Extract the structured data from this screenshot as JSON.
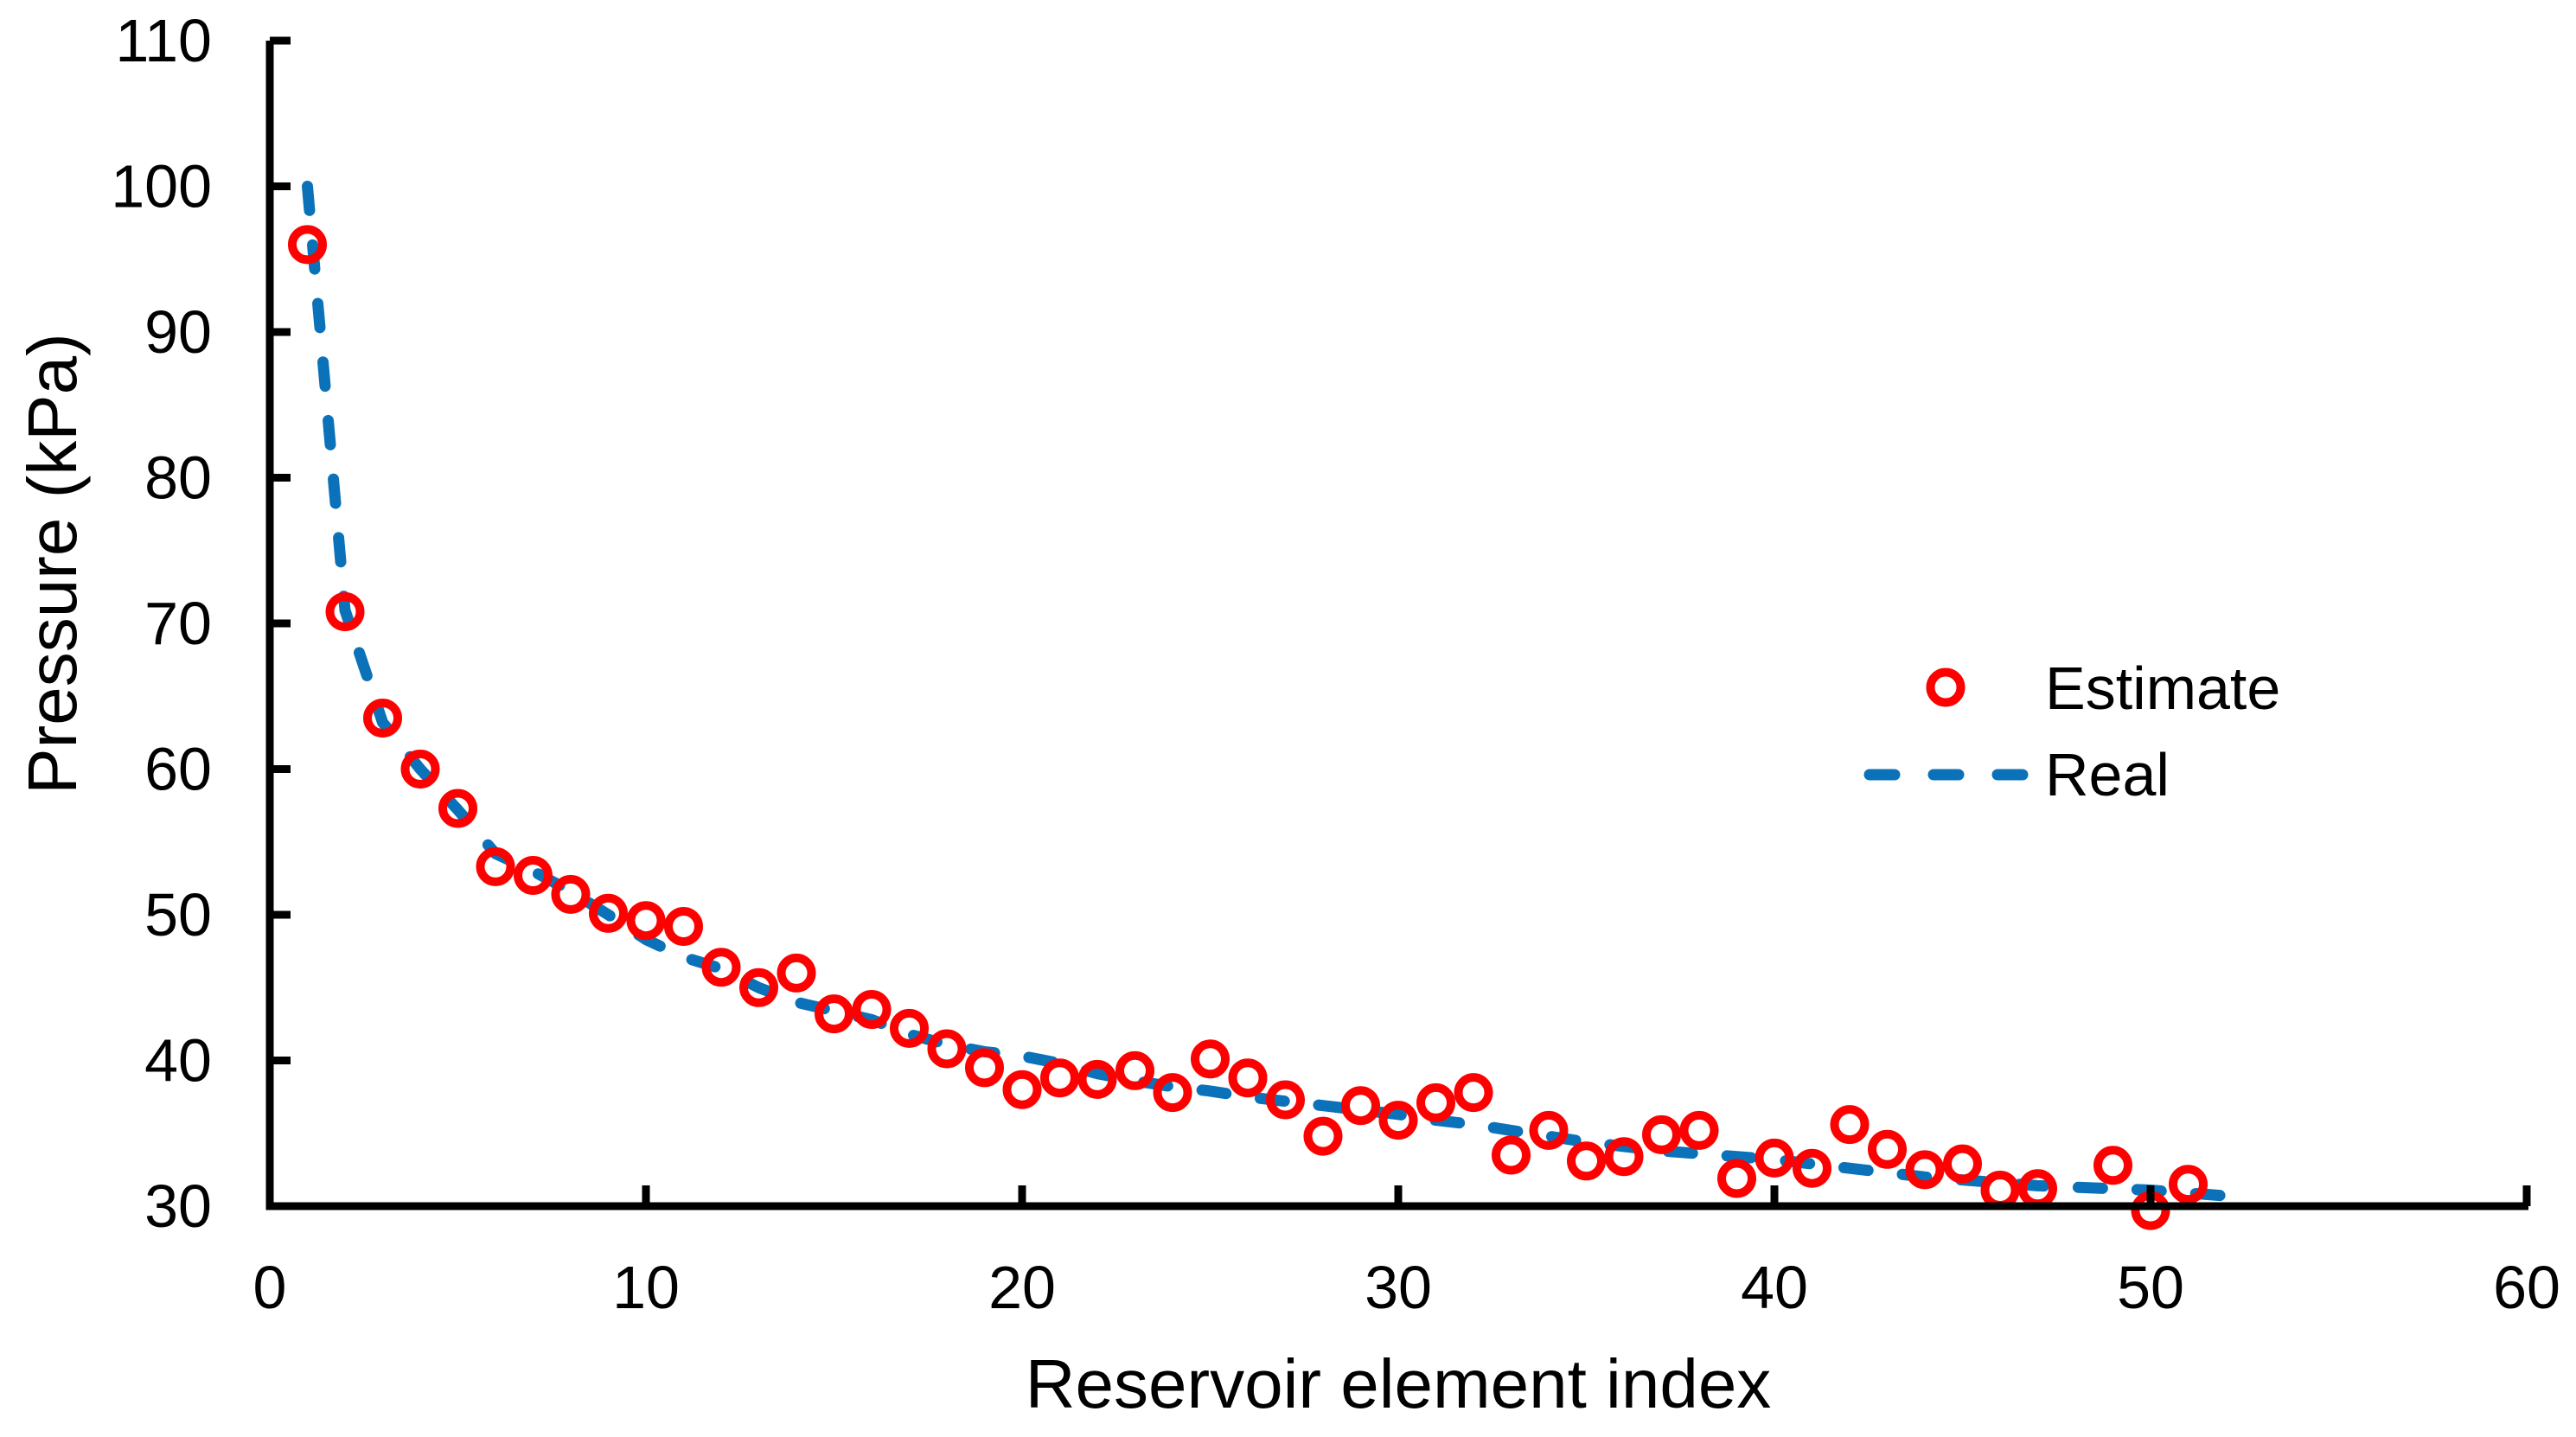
{
  "chart_data": {
    "type": "scatter",
    "title": "",
    "xlabel": "Reservoir element index",
    "ylabel": "Pressure (kPa)",
    "xlim": [
      0,
      60
    ],
    "ylim": [
      30,
      110
    ],
    "xticks": [
      0,
      10,
      20,
      30,
      40,
      50,
      60
    ],
    "yticks": [
      30,
      40,
      50,
      60,
      70,
      80,
      90,
      100,
      110
    ],
    "grid": false,
    "legend_position": "middle-right",
    "colors": {
      "estimate_marker": "#FF0000",
      "real_line": "#0B72B9",
      "axis": "#000000"
    },
    "series": [
      {
        "name": "Estimate",
        "style": "open-circle-markers",
        "color": "#FF0000",
        "x": [
          1,
          2,
          3,
          4,
          5,
          6,
          7,
          8,
          9,
          10,
          11,
          12,
          13,
          14,
          15,
          16,
          17,
          18,
          19,
          20,
          21,
          22,
          23,
          24,
          25,
          26,
          27,
          28,
          29,
          30,
          31,
          32,
          33,
          34,
          35,
          36,
          37,
          38,
          39,
          40,
          41,
          42,
          43,
          44,
          45,
          46,
          47,
          49,
          50,
          51
        ],
        "y": [
          96.0,
          70.8,
          63.5,
          60.0,
          57.3,
          53.3,
          52.7,
          51.4,
          50.1,
          49.6,
          49.2,
          46.4,
          45.0,
          46.0,
          43.2,
          43.5,
          42.2,
          40.8,
          39.5,
          38.0,
          38.8,
          38.7,
          39.3,
          37.8,
          40.1,
          38.8,
          37.3,
          34.8,
          36.9,
          35.9,
          37.1,
          37.8,
          33.5,
          35.2,
          33.1,
          33.4,
          34.9,
          35.2,
          31.9,
          33.3,
          32.6,
          35.6,
          33.9,
          32.5,
          32.9,
          31.1,
          31.2,
          32.8,
          29.7,
          31.5
        ]
      },
      {
        "name": "Real",
        "style": "dashed-line",
        "color": "#0B72B9",
        "x": [
          1,
          2,
          3,
          4,
          5,
          6,
          7,
          8,
          9,
          10,
          11,
          12,
          13,
          14,
          15,
          16,
          17,
          18,
          19,
          20,
          21,
          22,
          23,
          24,
          25,
          26,
          27,
          28,
          29,
          30,
          31,
          32,
          33,
          34,
          35,
          36,
          37,
          38,
          39,
          40,
          41,
          42,
          43,
          44,
          45,
          46,
          47,
          48,
          49,
          50,
          51,
          52,
          52.6
        ],
        "y": [
          100,
          70.9,
          63.2,
          60.0,
          57.2,
          54.2,
          53.0,
          51.6,
          50.0,
          48.3,
          47.1,
          46.3,
          45.0,
          44.0,
          43.4,
          42.8,
          41.8,
          41.1,
          40.6,
          40.3,
          39.8,
          39.1,
          38.6,
          38.2,
          37.9,
          37.5,
          37.2,
          36.9,
          36.6,
          36.3,
          35.9,
          35.6,
          35.2,
          34.8,
          34.4,
          34.1,
          33.8,
          33.6,
          33.4,
          33.2,
          32.9,
          32.6,
          32.3,
          32.0,
          31.8,
          31.6,
          31.4,
          31.3,
          31.2,
          31.1,
          30.9,
          30.7,
          30.6
        ]
      }
    ]
  }
}
